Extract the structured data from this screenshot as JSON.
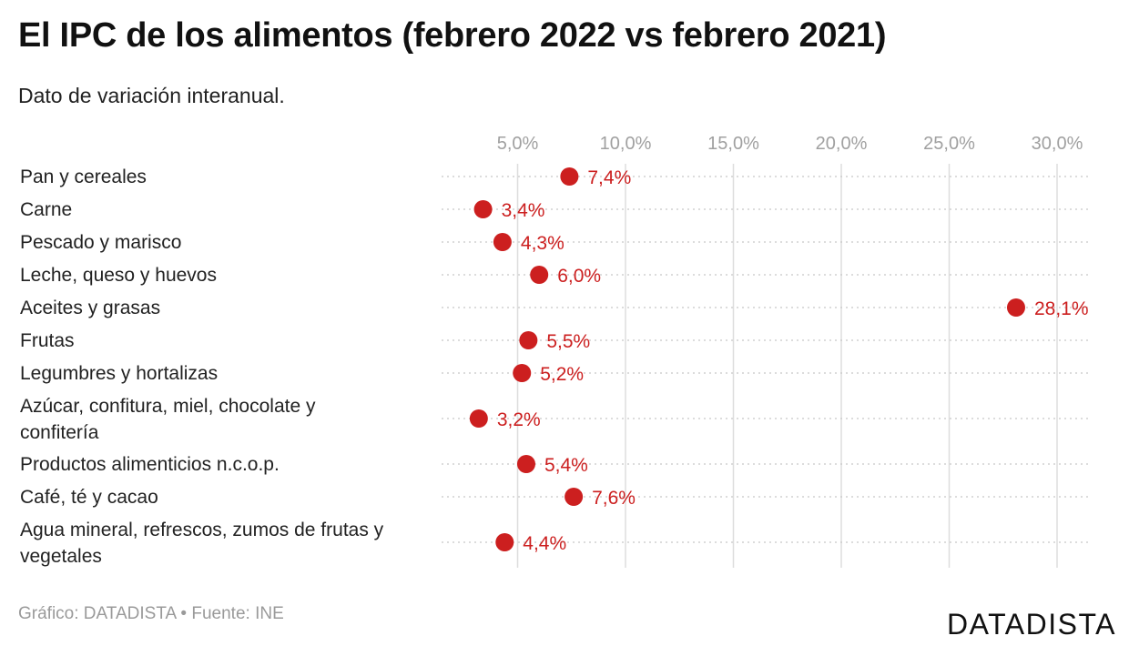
{
  "header": {
    "title": "El IPC de los alimentos (febrero 2022 vs febrero 2021)",
    "subtitle": "Dato de variación interanual."
  },
  "footer": {
    "credit": "Gráfico: DATADISTA • Fuente: INE",
    "brand": "DATADISTA"
  },
  "colors": {
    "dot": "#cc1f1f",
    "label": "#cc1f1f",
    "grid": "#dddddd",
    "tick": "#a0a0a0",
    "text": "#222222"
  },
  "chart_data": {
    "type": "scatter",
    "orientation": "horizontal dot plot",
    "title": "El IPC de los alimentos (febrero 2022 vs febrero 2021)",
    "subtitle": "Dato de variación interanual.",
    "xlim": [
      1.5,
      31.5
    ],
    "x_ticks": [
      5,
      10,
      15,
      20,
      25,
      30
    ],
    "x_tick_labels": [
      "5,0%",
      "10,0%",
      "15,0%",
      "20,0%",
      "25,0%",
      "30,0%"
    ],
    "grid": true,
    "categories": [
      [
        "Pan y cereales"
      ],
      [
        "Carne"
      ],
      [
        "Pescado y marisco"
      ],
      [
        "Leche, queso y huevos"
      ],
      [
        "Aceites y grasas"
      ],
      [
        "Frutas"
      ],
      [
        "Legumbres y hortalizas"
      ],
      [
        "Azúcar, confitura, miel, chocolate y",
        "confitería"
      ],
      [
        "Productos alimenticios n.c.o.p."
      ],
      [
        "Café, té y cacao"
      ],
      [
        "Agua mineral, refrescos, zumos de frutas y",
        "vegetales"
      ]
    ],
    "values": [
      7.4,
      3.4,
      4.3,
      6.0,
      28.1,
      5.5,
      5.2,
      3.2,
      5.4,
      7.6,
      4.4
    ],
    "value_labels": [
      "7,4%",
      "3,4%",
      "4,3%",
      "6,0%",
      "28,1%",
      "5,5%",
      "5,2%",
      "3,2%",
      "5,4%",
      "7,6%",
      "4,4%"
    ]
  }
}
